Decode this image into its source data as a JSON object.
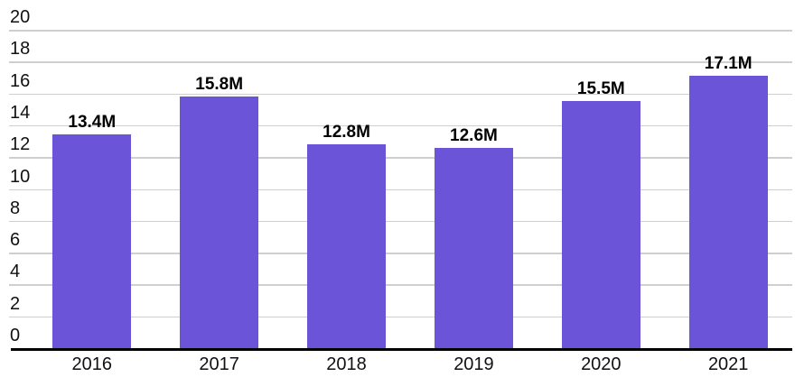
{
  "chart_data": {
    "type": "bar",
    "categories": [
      "2016",
      "2017",
      "2018",
      "2019",
      "2020",
      "2021"
    ],
    "values": [
      13.4,
      15.8,
      12.8,
      12.6,
      15.5,
      17.1
    ],
    "data_labels": [
      "13.4M",
      "15.8M",
      "12.8M",
      "12.6M",
      "15.5M",
      "17.1M"
    ],
    "title": "",
    "xlabel": "",
    "ylabel": "",
    "ylim": [
      0,
      20
    ],
    "ytick_step": 2,
    "ytick_labels": [
      "0",
      "2",
      "4",
      "6",
      "8",
      "10",
      "12",
      "14",
      "16",
      "18",
      "20"
    ],
    "grid": true,
    "legend": "none",
    "colors": {
      "bar": "#6b54d7",
      "gridline": "#cfcfcf",
      "axis": "#000000",
      "tick_text": "#111111",
      "value_text": "#000000",
      "background": "#ffffff"
    }
  }
}
